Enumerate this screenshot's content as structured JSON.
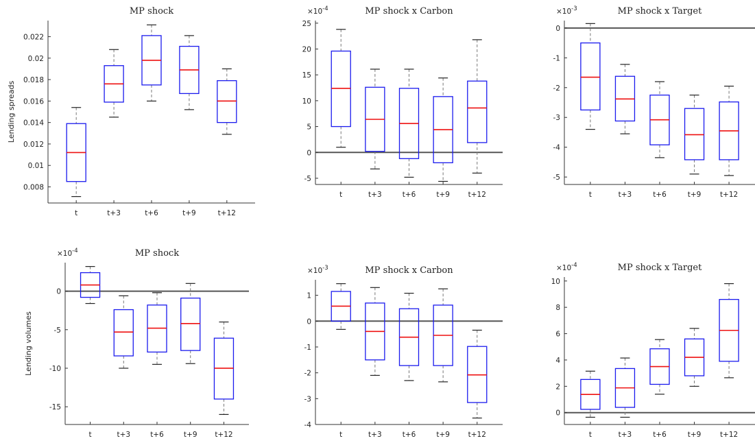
{
  "chart_data": [
    {
      "type": "box",
      "title": "MP shock",
      "ylabel": "Lending spreads",
      "exponent": "",
      "categories": [
        "t",
        "t+3",
        "t+6",
        "t+9",
        "t+12"
      ],
      "yticks": [
        0.008,
        0.01,
        0.012,
        0.014,
        0.016,
        0.018,
        0.02,
        0.022
      ],
      "ytick_labels": [
        "0.008",
        "0.01",
        "0.012",
        "0.014",
        "0.016",
        "0.018",
        "0.02",
        "0.022"
      ],
      "ylim": [
        0.0065,
        0.0235
      ],
      "zero_line": false,
      "boxes": [
        {
          "min": 0.0071,
          "q1": 0.0085,
          "median": 0.0112,
          "q3": 0.0139,
          "max": 0.0154
        },
        {
          "min": 0.0145,
          "q1": 0.0159,
          "median": 0.0176,
          "q3": 0.0193,
          "max": 0.0208
        },
        {
          "min": 0.016,
          "q1": 0.0175,
          "median": 0.0198,
          "q3": 0.0221,
          "max": 0.0231
        },
        {
          "min": 0.0152,
          "q1": 0.0167,
          "median": 0.0189,
          "q3": 0.0211,
          "max": 0.0221
        },
        {
          "min": 0.0129,
          "q1": 0.014,
          "median": 0.016,
          "q3": 0.0179,
          "max": 0.019
        }
      ]
    },
    {
      "type": "box",
      "title": "MP shock x Carbon",
      "ylabel": "",
      "exponent": "-4",
      "categories": [
        "t",
        "t+3",
        "t+6",
        "t+9",
        "t+12"
      ],
      "yticks": [
        -5,
        0,
        5,
        10,
        15,
        20,
        25
      ],
      "ytick_labels": [
        "-5",
        "0",
        "5",
        "10",
        "15",
        "20",
        "25"
      ],
      "ylim": [
        -6.2,
        25.5
      ],
      "zero_line": true,
      "boxes": [
        {
          "min": 1.0,
          "q1": 5.0,
          "median": 12.4,
          "q3": 19.6,
          "max": 23.8
        },
        {
          "min": -3.2,
          "q1": 0.2,
          "median": 6.4,
          "q3": 12.6,
          "max": 16.1
        },
        {
          "min": -4.8,
          "q1": -1.2,
          "median": 5.6,
          "q3": 12.4,
          "max": 16.1
        },
        {
          "min": -5.6,
          "q1": -2.0,
          "median": 4.4,
          "q3": 10.8,
          "max": 14.4
        },
        {
          "min": -4.0,
          "q1": 1.9,
          "median": 8.6,
          "q3": 13.8,
          "max": 21.8
        }
      ]
    },
    {
      "type": "box",
      "title": "MP shock x Target",
      "ylabel": "",
      "exponent": "-3",
      "categories": [
        "t",
        "t+3",
        "t+6",
        "t+9",
        "t+12"
      ],
      "yticks": [
        -5,
        -4,
        -3,
        -2,
        -1,
        0
      ],
      "ytick_labels": [
        "-5",
        "-4",
        "-3",
        "-2",
        "-1",
        "0"
      ],
      "ylim": [
        -5.25,
        0.25
      ],
      "zero_line": true,
      "boxes": [
        {
          "min": -3.4,
          "q1": -2.75,
          "median": -1.65,
          "q3": -0.5,
          "max": 0.15
        },
        {
          "min": -3.55,
          "q1": -3.12,
          "median": -2.38,
          "q3": -1.62,
          "max": -1.22
        },
        {
          "min": -4.35,
          "q1": -3.92,
          "median": -3.08,
          "q3": -2.25,
          "max": -1.8
        },
        {
          "min": -4.9,
          "q1": -4.42,
          "median": -3.58,
          "q3": -2.7,
          "max": -2.25
        },
        {
          "min": -4.95,
          "q1": -4.42,
          "median": -3.45,
          "q3": -2.48,
          "max": -1.95
        }
      ]
    },
    {
      "type": "box",
      "title": "MP shock",
      "ylabel": "Lending volumes",
      "exponent": "-4",
      "categories": [
        "t",
        "t+3",
        "t+6",
        "t+9",
        "t+12"
      ],
      "yticks": [
        -15,
        -10,
        -5,
        0
      ],
      "ytick_labels": [
        "-15",
        "-10",
        "-5",
        "0"
      ],
      "ylim": [
        -17.3,
        3.7
      ],
      "zero_line": true,
      "boxes": [
        {
          "min": -1.6,
          "q1": -0.8,
          "median": 0.8,
          "q3": 2.4,
          "max": 3.2
        },
        {
          "min": -10.0,
          "q1": -8.4,
          "median": -5.3,
          "q3": -2.4,
          "max": -0.6
        },
        {
          "min": -9.5,
          "q1": -7.9,
          "median": -4.8,
          "q3": -1.8,
          "max": -0.2
        },
        {
          "min": -9.4,
          "q1": -7.7,
          "median": -4.2,
          "q3": -0.9,
          "max": 1.0
        },
        {
          "min": -16.0,
          "q1": -14.0,
          "median": -10.0,
          "q3": -6.1,
          "max": -4.0
        }
      ]
    },
    {
      "type": "box",
      "title": "MP shock x Carbon",
      "ylabel": "",
      "exponent": "-3",
      "categories": [
        "t",
        "t+3",
        "t+6",
        "t+9",
        "t+12"
      ],
      "yticks": [
        -4,
        -3,
        -2,
        -1,
        0,
        1
      ],
      "ytick_labels": [
        "-4",
        "-3",
        "-2",
        "-1",
        "0",
        "1"
      ],
      "ylim": [
        -4.0,
        1.6
      ],
      "zero_line": true,
      "boxes": [
        {
          "min": -0.32,
          "q1": 0.0,
          "median": 0.58,
          "q3": 1.15,
          "max": 1.45
        },
        {
          "min": -2.1,
          "q1": -1.5,
          "median": -0.4,
          "q3": 0.7,
          "max": 1.3
        },
        {
          "min": -2.3,
          "q1": -1.72,
          "median": -0.62,
          "q3": 0.48,
          "max": 1.08
        },
        {
          "min": -2.35,
          "q1": -1.72,
          "median": -0.55,
          "q3": 0.62,
          "max": 1.25
        },
        {
          "min": -3.75,
          "q1": -3.15,
          "median": -2.08,
          "q3": -0.98,
          "max": -0.35
        }
      ]
    },
    {
      "type": "box",
      "title": "MP shock x Target",
      "ylabel": "",
      "exponent": "-4",
      "categories": [
        "t",
        "t+3",
        "t+6",
        "t+9",
        "t+12"
      ],
      "yticks": [
        0,
        2,
        4,
        6,
        8,
        10
      ],
      "ytick_labels": [
        "0",
        "2",
        "4",
        "6",
        "8",
        "10"
      ],
      "ylim": [
        -0.9,
        10.3
      ],
      "zero_line": true,
      "boxes": [
        {
          "min": -0.35,
          "q1": 0.25,
          "median": 1.38,
          "q3": 2.52,
          "max": 3.15
        },
        {
          "min": -0.35,
          "q1": 0.4,
          "median": 1.88,
          "q3": 3.35,
          "max": 4.15
        },
        {
          "min": 1.4,
          "q1": 2.15,
          "median": 3.5,
          "q3": 4.85,
          "max": 5.55
        },
        {
          "min": 2.0,
          "q1": 2.8,
          "median": 4.2,
          "q3": 5.6,
          "max": 6.4
        },
        {
          "min": 2.65,
          "q1": 3.9,
          "median": 6.25,
          "q3": 8.6,
          "max": 9.8
        }
      ]
    }
  ]
}
